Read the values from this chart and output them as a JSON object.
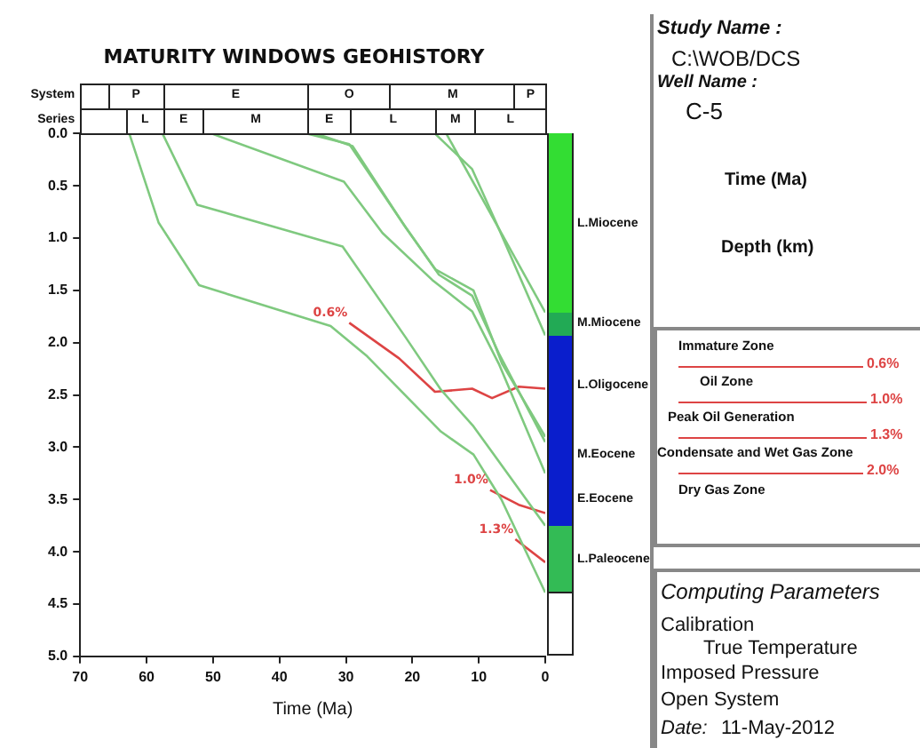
{
  "chart_data": {
    "type": "line",
    "title": "MATURITY WINDOWS GEOHISTORY",
    "xlabel": "Time (Ma)",
    "xlim": [
      70,
      0
    ],
    "xticks": [
      70,
      60,
      50,
      40,
      30,
      20,
      10,
      0
    ],
    "ylim": [
      5,
      0
    ],
    "yticks": [
      {
        "value": 0,
        "label": "0.0"
      },
      {
        "value": 0.5,
        "label": "0.5"
      },
      {
        "value": 1,
        "label": "1.0"
      },
      {
        "value": 1.5,
        "label": "1.5"
      },
      {
        "value": 2,
        "label": "2.0"
      },
      {
        "value": 2.5,
        "label": "2.5"
      },
      {
        "value": 3,
        "label": "3.0"
      },
      {
        "value": 3.5,
        "label": "3.5"
      },
      {
        "value": 4,
        "label": "4.0"
      },
      {
        "value": 4.5,
        "label": "4.5"
      },
      {
        "value": 5,
        "label": "5.0"
      }
    ],
    "series": [
      {
        "color": "#7fc97f",
        "x": [
          62.6,
          58.2,
          52.1,
          32.3,
          26.8,
          15.7,
          10.8,
          6.6,
          0
        ],
        "values": [
          0,
          0.85,
          1.45,
          1.84,
          2.13,
          2.85,
          3.07,
          3.5,
          4.39
        ]
      },
      {
        "color": "#7fc97f",
        "x": [
          57.6,
          52.4,
          30.5,
          21,
          15.7,
          10.8,
          0
        ],
        "values": [
          0,
          0.68,
          1.08,
          1.95,
          2.45,
          2.8,
          3.75
        ]
      },
      {
        "color": "#7fc97f",
        "x": [
          50.2,
          30.3,
          24.5,
          17,
          11,
          7,
          0
        ],
        "values": [
          0,
          0.46,
          0.95,
          1.4,
          1.7,
          2.2,
          3.25
        ]
      },
      {
        "color": "#7fc97f",
        "x": [
          35.8,
          29.5,
          21.5,
          16,
          11,
          7,
          0
        ],
        "values": [
          0,
          0.1,
          0.85,
          1.35,
          1.55,
          2.1,
          2.95
        ]
      },
      {
        "color": "#7fc97f",
        "x": [
          34.5,
          29,
          21,
          16.5,
          10.8,
          6.5,
          0
        ],
        "values": [
          0,
          0.12,
          0.9,
          1.3,
          1.5,
          2.2,
          2.9
        ]
      },
      {
        "color": "#7fc97f",
        "x": [
          16.6,
          11,
          7.4,
          0
        ],
        "values": [
          0,
          0.34,
          0.85,
          1.93
        ]
      },
      {
        "color": "#7fc97f",
        "x": [
          14.9,
          0
        ],
        "values": [
          0,
          1.71
        ]
      },
      {
        "name": "0.6%",
        "color": "#dd4444",
        "x": [
          29.5,
          22,
          16.6,
          11,
          8,
          4,
          0
        ],
        "values": [
          1.81,
          2.15,
          2.47,
          2.44,
          2.53,
          2.42,
          2.44
        ]
      },
      {
        "name": "1.0%",
        "color": "#dd4444",
        "x": [
          8.3,
          4,
          0
        ],
        "values": [
          3.41,
          3.55,
          3.63
        ]
      },
      {
        "name": "1.3%",
        "color": "#dd4444",
        "x": [
          4.5,
          0
        ],
        "values": [
          3.88,
          4.1
        ]
      }
    ],
    "marker": "none",
    "grid": false,
    "legend": false,
    "annotations": [
      "System",
      "P",
      "E",
      "O",
      "M",
      "P",
      "Series",
      "L",
      "E",
      "M",
      "E",
      "L",
      "M",
      "L",
      "L.Miocene",
      "M.Miocene",
      "L.Oligocene",
      "M.Eocene",
      "E.Eocene",
      "L.Paleocene",
      "Study Name :",
      "C:\\WOB/DCS",
      "Well Name :",
      "C-5",
      "Time (Ma)",
      "Depth (km)",
      "Immature Zone",
      "0.6%",
      "Oil Zone",
      "1.0%",
      "Peak Oil Generation",
      "1.3%",
      "Condensate and Wet Gas Zone",
      "2.0%",
      "Dry Gas Zone",
      "Computing Parameters",
      "Calibration",
      "True Temperature",
      "Imposed Pressure",
      "Open System",
      "Date:",
      "11-May-2012"
    ]
  }
}
